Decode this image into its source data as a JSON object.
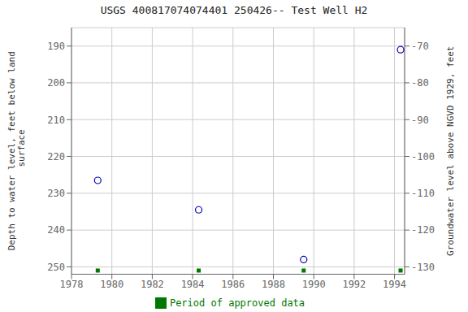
{
  "chart_data": {
    "type": "scatter",
    "title": "USGS 400817074074401 250426-- Test Well H2",
    "y_label": "Depth to water level, feet below land\n surface",
    "y2_label": "Groundwater level above NGVD 1929, feet",
    "xlim": [
      1978,
      1994.5
    ],
    "xticks": [
      1978,
      1980,
      1982,
      1984,
      1986,
      1988,
      1990,
      1992,
      1994
    ],
    "ylim": [
      252,
      185
    ],
    "yticks": [
      190,
      200,
      210,
      220,
      230,
      240,
      250
    ],
    "y2lim": [
      -132,
      -65
    ],
    "y2ticks": [
      -70,
      -80,
      -90,
      -100,
      -110,
      -120,
      -130
    ],
    "grid": true,
    "legend": "bottom",
    "series": [
      {
        "color": "#0000bb",
        "marker": "open_circle",
        "x": [
          1979.3,
          1984.3,
          1989.5,
          1994.3
        ],
        "values": [
          226.5,
          234.5,
          248.0,
          191.0
        ]
      },
      {
        "name": "Period of approved data",
        "color": "#007700",
        "marker": "square",
        "x": [
          1979.3,
          1984.3,
          1989.5,
          1994.3
        ],
        "values": [
          251.0,
          251.0,
          251.0,
          251.0
        ]
      }
    ]
  }
}
